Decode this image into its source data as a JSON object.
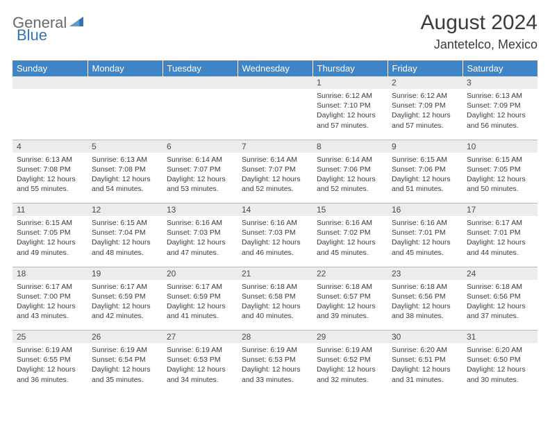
{
  "logo": {
    "general": "General",
    "blue": "Blue",
    "accent_color": "#2f74b5",
    "text_color": "#6a6a6a"
  },
  "header": {
    "month": "August 2024",
    "location": "Jantetelco, Mexico"
  },
  "colors": {
    "header_bg": "#3d85c6",
    "header_text": "#ffffff",
    "daynum_bg": "#ececec",
    "body_text": "#3a3a3a",
    "border": "#b8b8b8"
  },
  "weekdays": [
    "Sunday",
    "Monday",
    "Tuesday",
    "Wednesday",
    "Thursday",
    "Friday",
    "Saturday"
  ],
  "weeks": [
    [
      null,
      null,
      null,
      null,
      {
        "n": "1",
        "sr": "Sunrise: 6:12 AM",
        "ss": "Sunset: 7:10 PM",
        "dl": "Daylight: 12 hours and 57 minutes."
      },
      {
        "n": "2",
        "sr": "Sunrise: 6:12 AM",
        "ss": "Sunset: 7:09 PM",
        "dl": "Daylight: 12 hours and 57 minutes."
      },
      {
        "n": "3",
        "sr": "Sunrise: 6:13 AM",
        "ss": "Sunset: 7:09 PM",
        "dl": "Daylight: 12 hours and 56 minutes."
      }
    ],
    [
      {
        "n": "4",
        "sr": "Sunrise: 6:13 AM",
        "ss": "Sunset: 7:08 PM",
        "dl": "Daylight: 12 hours and 55 minutes."
      },
      {
        "n": "5",
        "sr": "Sunrise: 6:13 AM",
        "ss": "Sunset: 7:08 PM",
        "dl": "Daylight: 12 hours and 54 minutes."
      },
      {
        "n": "6",
        "sr": "Sunrise: 6:14 AM",
        "ss": "Sunset: 7:07 PM",
        "dl": "Daylight: 12 hours and 53 minutes."
      },
      {
        "n": "7",
        "sr": "Sunrise: 6:14 AM",
        "ss": "Sunset: 7:07 PM",
        "dl": "Daylight: 12 hours and 52 minutes."
      },
      {
        "n": "8",
        "sr": "Sunrise: 6:14 AM",
        "ss": "Sunset: 7:06 PM",
        "dl": "Daylight: 12 hours and 52 minutes."
      },
      {
        "n": "9",
        "sr": "Sunrise: 6:15 AM",
        "ss": "Sunset: 7:06 PM",
        "dl": "Daylight: 12 hours and 51 minutes."
      },
      {
        "n": "10",
        "sr": "Sunrise: 6:15 AM",
        "ss": "Sunset: 7:05 PM",
        "dl": "Daylight: 12 hours and 50 minutes."
      }
    ],
    [
      {
        "n": "11",
        "sr": "Sunrise: 6:15 AM",
        "ss": "Sunset: 7:05 PM",
        "dl": "Daylight: 12 hours and 49 minutes."
      },
      {
        "n": "12",
        "sr": "Sunrise: 6:15 AM",
        "ss": "Sunset: 7:04 PM",
        "dl": "Daylight: 12 hours and 48 minutes."
      },
      {
        "n": "13",
        "sr": "Sunrise: 6:16 AM",
        "ss": "Sunset: 7:03 PM",
        "dl": "Daylight: 12 hours and 47 minutes."
      },
      {
        "n": "14",
        "sr": "Sunrise: 6:16 AM",
        "ss": "Sunset: 7:03 PM",
        "dl": "Daylight: 12 hours and 46 minutes."
      },
      {
        "n": "15",
        "sr": "Sunrise: 6:16 AM",
        "ss": "Sunset: 7:02 PM",
        "dl": "Daylight: 12 hours and 45 minutes."
      },
      {
        "n": "16",
        "sr": "Sunrise: 6:16 AM",
        "ss": "Sunset: 7:01 PM",
        "dl": "Daylight: 12 hours and 45 minutes."
      },
      {
        "n": "17",
        "sr": "Sunrise: 6:17 AM",
        "ss": "Sunset: 7:01 PM",
        "dl": "Daylight: 12 hours and 44 minutes."
      }
    ],
    [
      {
        "n": "18",
        "sr": "Sunrise: 6:17 AM",
        "ss": "Sunset: 7:00 PM",
        "dl": "Daylight: 12 hours and 43 minutes."
      },
      {
        "n": "19",
        "sr": "Sunrise: 6:17 AM",
        "ss": "Sunset: 6:59 PM",
        "dl": "Daylight: 12 hours and 42 minutes."
      },
      {
        "n": "20",
        "sr": "Sunrise: 6:17 AM",
        "ss": "Sunset: 6:59 PM",
        "dl": "Daylight: 12 hours and 41 minutes."
      },
      {
        "n": "21",
        "sr": "Sunrise: 6:18 AM",
        "ss": "Sunset: 6:58 PM",
        "dl": "Daylight: 12 hours and 40 minutes."
      },
      {
        "n": "22",
        "sr": "Sunrise: 6:18 AM",
        "ss": "Sunset: 6:57 PM",
        "dl": "Daylight: 12 hours and 39 minutes."
      },
      {
        "n": "23",
        "sr": "Sunrise: 6:18 AM",
        "ss": "Sunset: 6:56 PM",
        "dl": "Daylight: 12 hours and 38 minutes."
      },
      {
        "n": "24",
        "sr": "Sunrise: 6:18 AM",
        "ss": "Sunset: 6:56 PM",
        "dl": "Daylight: 12 hours and 37 minutes."
      }
    ],
    [
      {
        "n": "25",
        "sr": "Sunrise: 6:19 AM",
        "ss": "Sunset: 6:55 PM",
        "dl": "Daylight: 12 hours and 36 minutes."
      },
      {
        "n": "26",
        "sr": "Sunrise: 6:19 AM",
        "ss": "Sunset: 6:54 PM",
        "dl": "Daylight: 12 hours and 35 minutes."
      },
      {
        "n": "27",
        "sr": "Sunrise: 6:19 AM",
        "ss": "Sunset: 6:53 PM",
        "dl": "Daylight: 12 hours and 34 minutes."
      },
      {
        "n": "28",
        "sr": "Sunrise: 6:19 AM",
        "ss": "Sunset: 6:53 PM",
        "dl": "Daylight: 12 hours and 33 minutes."
      },
      {
        "n": "29",
        "sr": "Sunrise: 6:19 AM",
        "ss": "Sunset: 6:52 PM",
        "dl": "Daylight: 12 hours and 32 minutes."
      },
      {
        "n": "30",
        "sr": "Sunrise: 6:20 AM",
        "ss": "Sunset: 6:51 PM",
        "dl": "Daylight: 12 hours and 31 minutes."
      },
      {
        "n": "31",
        "sr": "Sunrise: 6:20 AM",
        "ss": "Sunset: 6:50 PM",
        "dl": "Daylight: 12 hours and 30 minutes."
      }
    ]
  ]
}
